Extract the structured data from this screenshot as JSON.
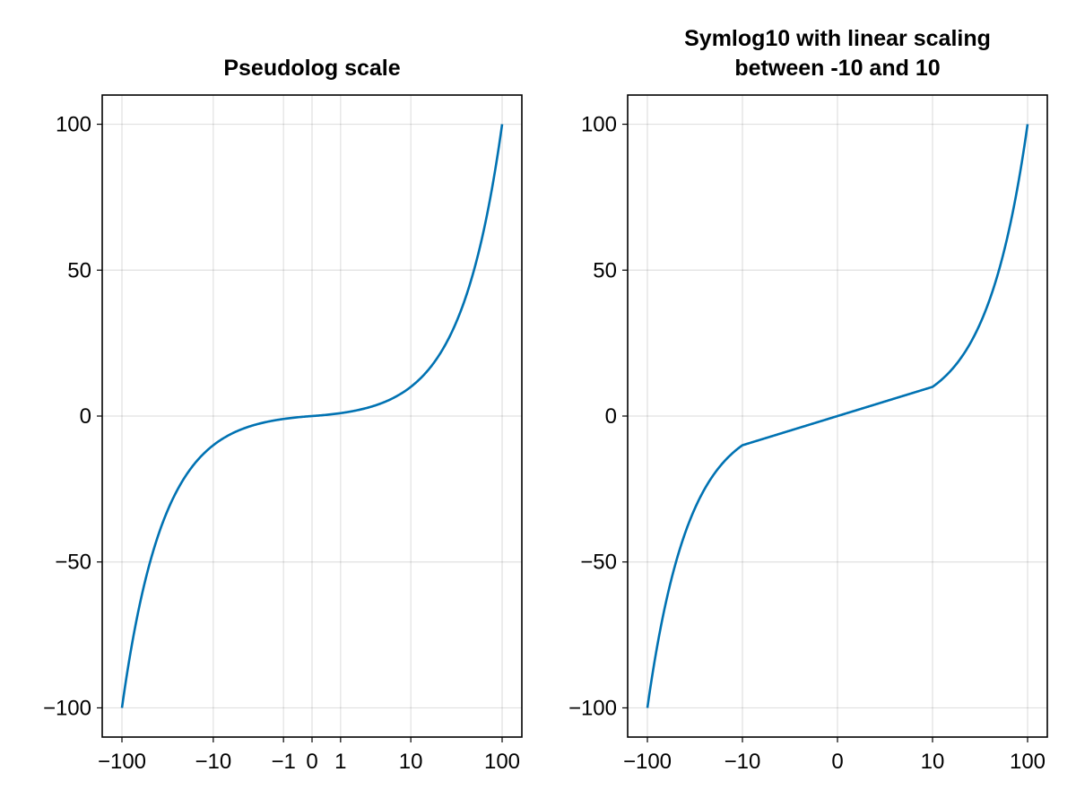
{
  "chart_data": [
    {
      "type": "line",
      "title": [
        "Pseudolog scale"
      ],
      "xscale": "pseudolog10",
      "xlim": [
        -100,
        100
      ],
      "ylim": [
        -110,
        110
      ],
      "grid": true,
      "xticks": [
        {
          "value": -100,
          "label": "−100"
        },
        {
          "value": -10,
          "label": "−10"
        },
        {
          "value": -1,
          "label": "−1"
        },
        {
          "value": 0,
          "label": "0"
        },
        {
          "value": 1,
          "label": "1"
        },
        {
          "value": 10,
          "label": "10"
        },
        {
          "value": 100,
          "label": "100"
        }
      ],
      "yticks": [
        {
          "value": -100,
          "label": "−100"
        },
        {
          "value": -50,
          "label": "−50"
        },
        {
          "value": 0,
          "label": "0"
        },
        {
          "value": 50,
          "label": "50"
        },
        {
          "value": 100,
          "label": "100"
        }
      ],
      "series": [
        {
          "color": "#0072b2",
          "x": [
            -100,
            -50,
            -25,
            -10,
            -5,
            -1,
            0,
            1,
            5,
            10,
            25,
            50,
            100
          ],
          "y": [
            -100,
            -50,
            -25,
            -10,
            -5,
            -1,
            0,
            1,
            5,
            10,
            25,
            50,
            100
          ]
        }
      ]
    },
    {
      "type": "line",
      "title": [
        "Symlog10 with linear scaling",
        "between -10 and 10"
      ],
      "xscale": "symlog10",
      "linthresh": 10,
      "xlim": [
        -100,
        100
      ],
      "ylim": [
        -110,
        110
      ],
      "grid": true,
      "xticks": [
        {
          "value": -100,
          "label": "−100"
        },
        {
          "value": -10,
          "label": "−10"
        },
        {
          "value": 0,
          "label": "0"
        },
        {
          "value": 10,
          "label": "10"
        },
        {
          "value": 100,
          "label": "100"
        }
      ],
      "yticks": [
        {
          "value": -100,
          "label": "−100"
        },
        {
          "value": -50,
          "label": "−50"
        },
        {
          "value": 0,
          "label": "0"
        },
        {
          "value": 50,
          "label": "50"
        },
        {
          "value": 100,
          "label": "100"
        }
      ],
      "series": [
        {
          "color": "#0072b2",
          "x": [
            -100,
            -50,
            -25,
            -10,
            -5,
            0,
            5,
            10,
            25,
            50,
            100
          ],
          "y": [
            -100,
            -50,
            -25,
            -10,
            -5,
            0,
            5,
            10,
            25,
            50,
            100
          ]
        }
      ]
    }
  ]
}
